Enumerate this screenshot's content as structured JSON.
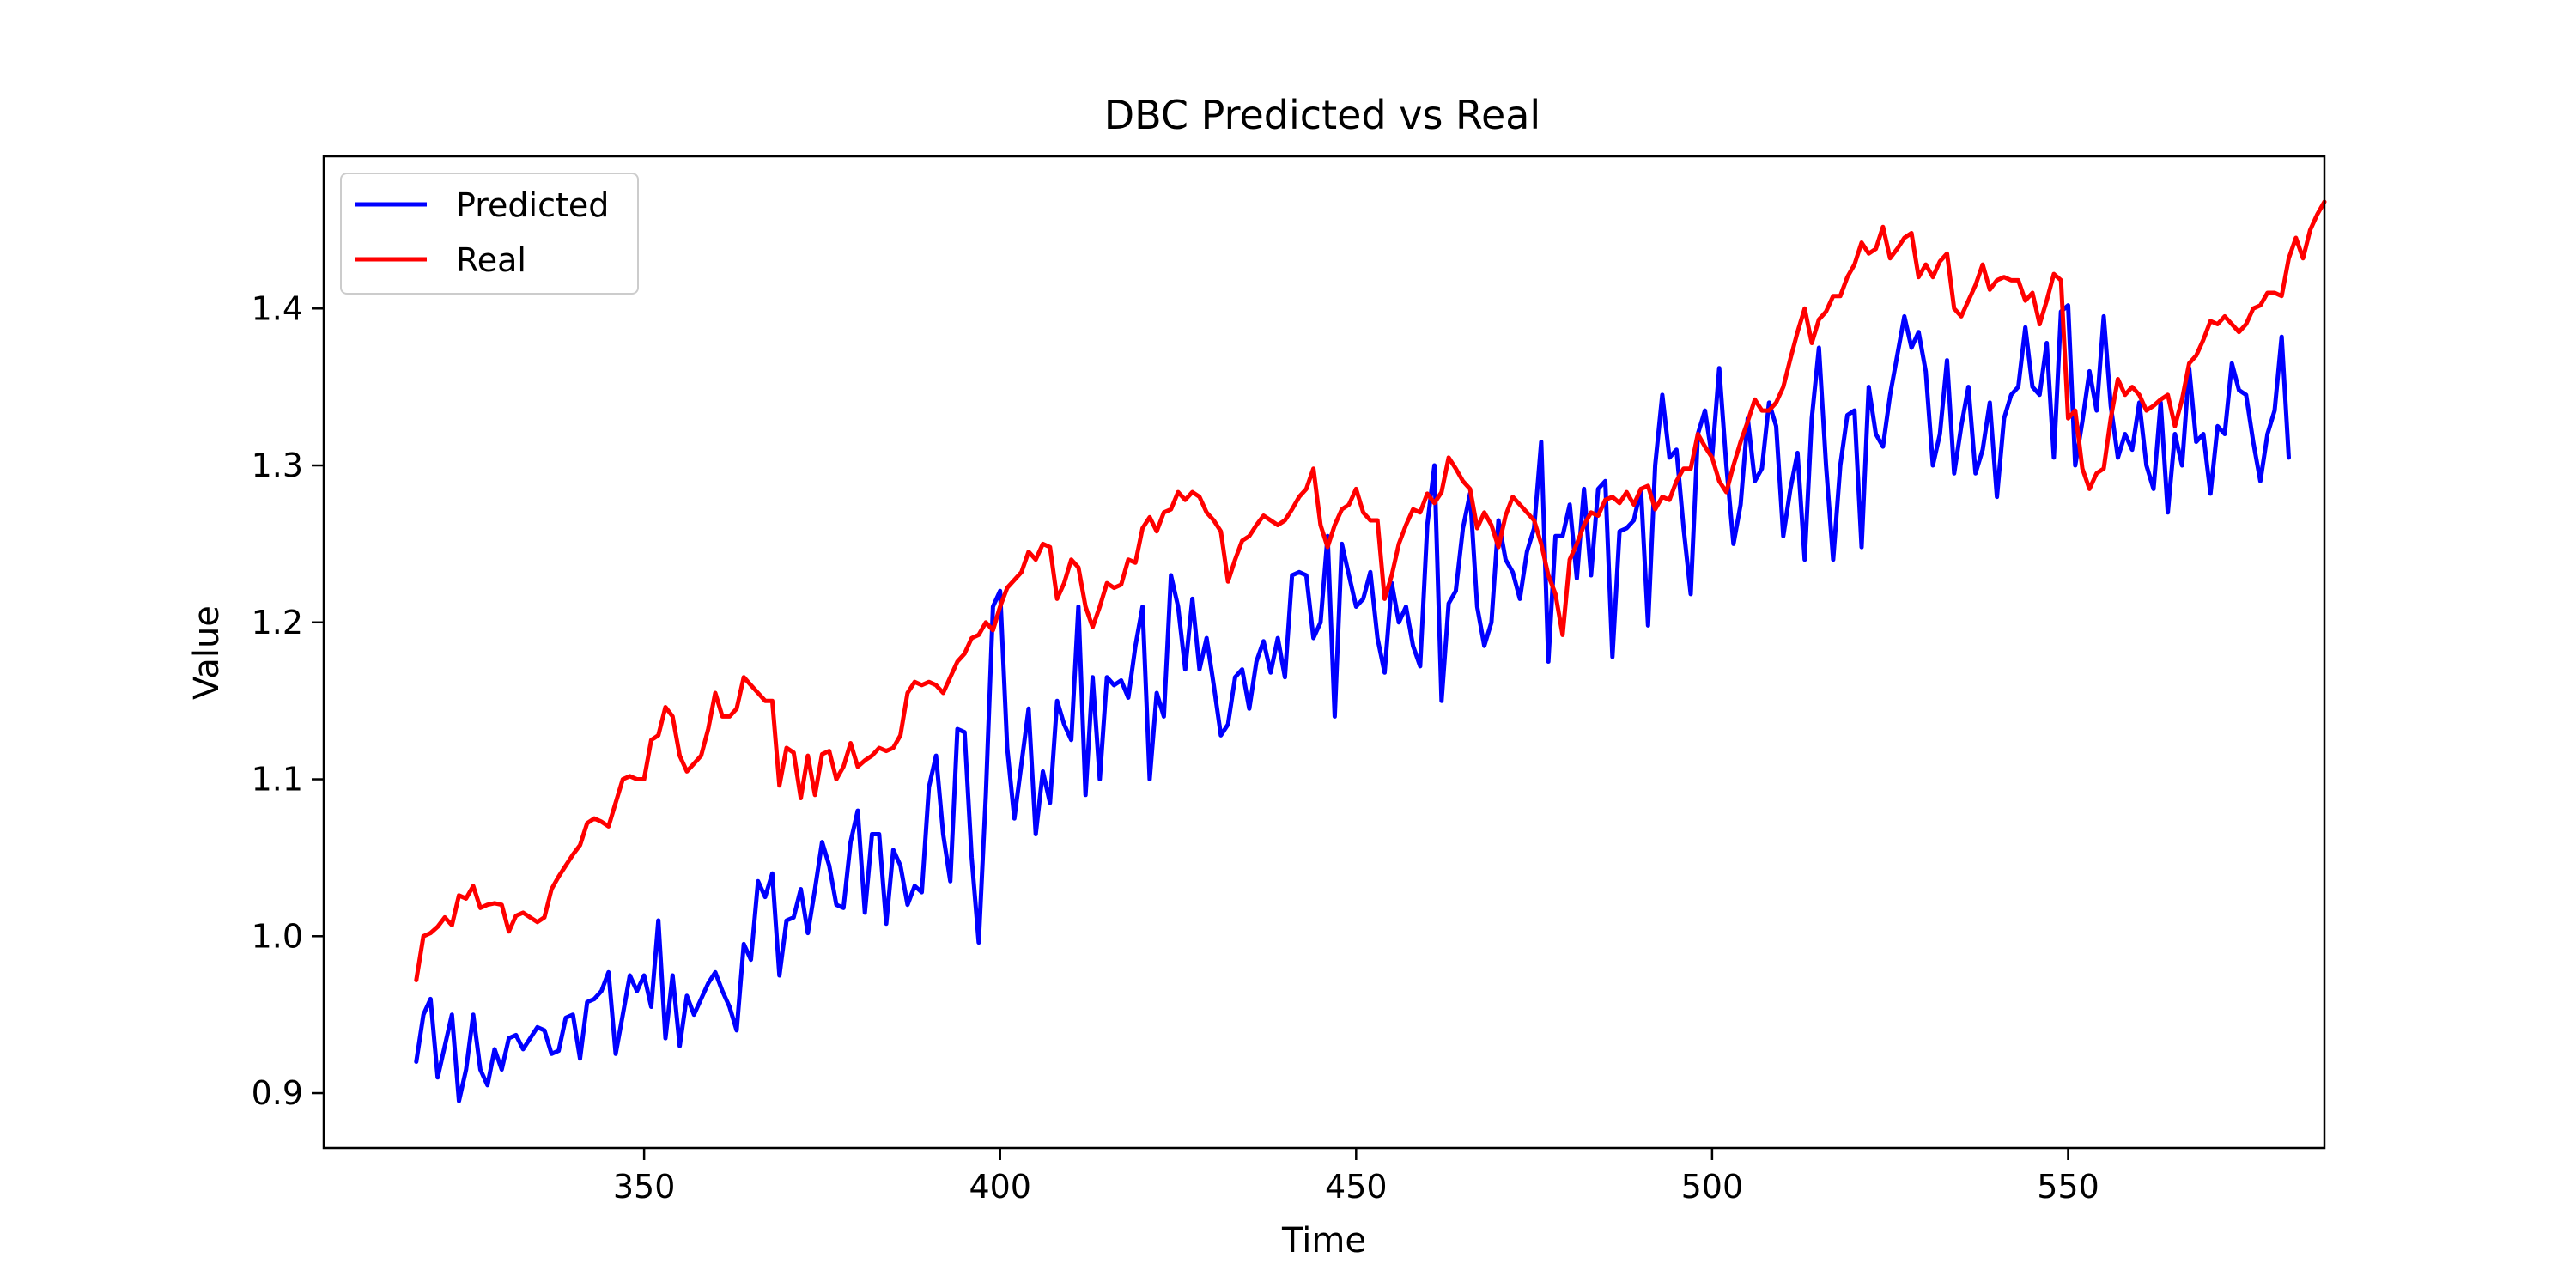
{
  "chart_data": {
    "type": "line",
    "title": "DBC Predicted vs Real",
    "xlabel": "Time",
    "ylabel": "Value",
    "xlim": [
      305,
      586
    ],
    "ylim": [
      0.865,
      1.497
    ],
    "xticks": [
      350,
      400,
      450,
      500,
      550
    ],
    "yticks": [
      0.9,
      1.0,
      1.1,
      1.2,
      1.3,
      1.4
    ],
    "xtick_labels": [
      "350",
      "400",
      "450",
      "500",
      "550"
    ],
    "ytick_labels": [
      "0.9",
      "1.0",
      "1.1",
      "1.2",
      "1.3",
      "1.4"
    ],
    "grid": false,
    "legend_position": "upper left",
    "series": [
      {
        "name": "Predicted",
        "color": "#0000ff",
        "x_start": 318,
        "x_step": 1,
        "values": [
          0.92,
          0.95,
          0.96,
          0.91,
          0.93,
          0.95,
          0.895,
          0.915,
          0.95,
          0.915,
          0.905,
          0.928,
          0.915,
          0.935,
          0.937,
          0.928,
          0.935,
          0.942,
          0.94,
          0.925,
          0.927,
          0.948,
          0.95,
          0.922,
          0.958,
          0.96,
          0.965,
          0.977,
          0.925,
          0.95,
          0.975,
          0.965,
          0.975,
          0.955,
          1.01,
          0.935,
          0.975,
          0.93,
          0.962,
          0.95,
          0.96,
          0.97,
          0.977,
          0.965,
          0.955,
          0.94,
          0.995,
          0.985,
          1.035,
          1.025,
          1.04,
          0.975,
          1.01,
          1.012,
          1.03,
          1.002,
          1.03,
          1.06,
          1.045,
          1.02,
          1.018,
          1.06,
          1.08,
          1.015,
          1.065,
          1.065,
          1.008,
          1.055,
          1.045,
          1.02,
          1.032,
          1.028,
          1.095,
          1.115,
          1.065,
          1.035,
          1.132,
          1.13,
          1.05,
          0.996,
          1.09,
          1.21,
          1.22,
          1.12,
          1.075,
          1.11,
          1.145,
          1.065,
          1.105,
          1.085,
          1.15,
          1.135,
          1.125,
          1.21,
          1.09,
          1.165,
          1.1,
          1.165,
          1.16,
          1.163,
          1.152,
          1.185,
          1.21,
          1.1,
          1.155,
          1.14,
          1.23,
          1.21,
          1.17,
          1.215,
          1.17,
          1.19,
          1.16,
          1.128,
          1.135,
          1.165,
          1.17,
          1.145,
          1.175,
          1.188,
          1.168,
          1.19,
          1.165,
          1.23,
          1.232,
          1.23,
          1.19,
          1.2,
          1.255,
          1.14,
          1.25,
          1.23,
          1.21,
          1.215,
          1.232,
          1.19,
          1.168,
          1.225,
          1.2,
          1.21,
          1.185,
          1.172,
          1.262,
          1.3,
          1.15,
          1.212,
          1.22,
          1.26,
          1.282,
          1.21,
          1.185,
          1.2,
          1.265,
          1.24,
          1.232,
          1.215,
          1.245,
          1.26,
          1.315,
          1.175,
          1.255,
          1.255,
          1.275,
          1.228,
          1.285,
          1.23,
          1.285,
          1.29,
          1.178,
          1.258,
          1.26,
          1.265,
          1.285,
          1.198,
          1.3,
          1.345,
          1.305,
          1.31,
          1.26,
          1.218,
          1.32,
          1.335,
          1.305,
          1.362,
          1.3,
          1.25,
          1.275,
          1.33,
          1.29,
          1.298,
          1.34,
          1.325,
          1.255,
          1.285,
          1.308,
          1.24,
          1.33,
          1.375,
          1.3,
          1.24,
          1.3,
          1.332,
          1.335,
          1.248,
          1.35,
          1.32,
          1.312,
          1.345,
          1.37,
          1.395,
          1.375,
          1.385,
          1.36,
          1.3,
          1.32,
          1.367,
          1.295,
          1.325,
          1.35,
          1.295,
          1.31,
          1.34,
          1.28,
          1.33,
          1.345,
          1.35,
          1.388,
          1.35,
          1.345,
          1.378,
          1.305,
          1.398,
          1.402,
          1.3,
          1.328,
          1.36,
          1.335,
          1.395,
          1.338,
          1.305,
          1.32,
          1.31,
          1.34,
          1.3,
          1.285,
          1.34,
          1.27,
          1.32,
          1.3,
          1.362,
          1.315,
          1.32,
          1.282,
          1.325,
          1.32,
          1.365,
          1.348,
          1.345,
          1.315,
          1.29,
          1.32,
          1.335,
          1.382,
          1.305
        ]
      },
      {
        "name": "Real",
        "color": "#ff0000",
        "x_start": 318,
        "x_step": 1,
        "values": [
          0.972,
          1.0,
          1.002,
          1.006,
          1.012,
          1.007,
          1.026,
          1.024,
          1.032,
          1.018,
          1.02,
          1.021,
          1.02,
          1.003,
          1.013,
          1.015,
          1.012,
          1.009,
          1.012,
          1.03,
          1.038,
          1.045,
          1.052,
          1.058,
          1.072,
          1.075,
          1.073,
          1.07,
          1.085,
          1.1,
          1.102,
          1.1,
          1.1,
          1.125,
          1.128,
          1.146,
          1.14,
          1.115,
          1.105,
          1.11,
          1.115,
          1.132,
          1.155,
          1.14,
          1.14,
          1.145,
          1.165,
          1.16,
          1.155,
          1.15,
          1.15,
          1.096,
          1.12,
          1.117,
          1.088,
          1.115,
          1.09,
          1.116,
          1.118,
          1.1,
          1.108,
          1.123,
          1.108,
          1.112,
          1.115,
          1.12,
          1.118,
          1.12,
          1.128,
          1.155,
          1.162,
          1.16,
          1.162,
          1.16,
          1.155,
          1.165,
          1.175,
          1.18,
          1.19,
          1.192,
          1.2,
          1.195,
          1.21,
          1.222,
          1.227,
          1.232,
          1.245,
          1.24,
          1.25,
          1.248,
          1.215,
          1.225,
          1.24,
          1.235,
          1.21,
          1.197,
          1.21,
          1.225,
          1.222,
          1.224,
          1.24,
          1.238,
          1.26,
          1.267,
          1.258,
          1.27,
          1.272,
          1.283,
          1.278,
          1.283,
          1.28,
          1.27,
          1.265,
          1.258,
          1.226,
          1.24,
          1.252,
          1.255,
          1.262,
          1.268,
          1.265,
          1.262,
          1.265,
          1.272,
          1.28,
          1.285,
          1.298,
          1.262,
          1.248,
          1.262,
          1.272,
          1.275,
          1.285,
          1.27,
          1.265,
          1.265,
          1.215,
          1.23,
          1.25,
          1.262,
          1.272,
          1.27,
          1.282,
          1.276,
          1.283,
          1.305,
          1.298,
          1.29,
          1.285,
          1.26,
          1.27,
          1.262,
          1.248,
          1.268,
          1.28,
          1.275,
          1.27,
          1.265,
          1.25,
          1.23,
          1.218,
          1.192,
          1.24,
          1.25,
          1.262,
          1.27,
          1.268,
          1.278,
          1.28,
          1.276,
          1.283,
          1.275,
          1.285,
          1.287,
          1.272,
          1.28,
          1.278,
          1.29,
          1.298,
          1.298,
          1.32,
          1.312,
          1.305,
          1.29,
          1.283,
          1.3,
          1.315,
          1.328,
          1.342,
          1.335,
          1.335,
          1.34,
          1.35,
          1.368,
          1.385,
          1.4,
          1.378,
          1.393,
          1.398,
          1.408,
          1.408,
          1.42,
          1.428,
          1.442,
          1.435,
          1.438,
          1.452,
          1.432,
          1.438,
          1.445,
          1.448,
          1.42,
          1.428,
          1.42,
          1.43,
          1.435,
          1.4,
          1.395,
          1.405,
          1.415,
          1.428,
          1.412,
          1.418,
          1.42,
          1.418,
          1.418,
          1.405,
          1.41,
          1.39,
          1.405,
          1.422,
          1.418,
          1.33,
          1.335,
          1.298,
          1.285,
          1.295,
          1.298,
          1.33,
          1.355,
          1.345,
          1.35,
          1.345,
          1.335,
          1.338,
          1.342,
          1.345,
          1.325,
          1.342,
          1.365,
          1.37,
          1.38,
          1.392,
          1.39,
          1.395,
          1.39,
          1.385,
          1.39,
          1.4,
          1.402,
          1.41,
          1.41,
          1.408,
          1.432,
          1.445,
          1.432,
          1.45,
          1.46,
          1.468
        ]
      }
    ]
  }
}
